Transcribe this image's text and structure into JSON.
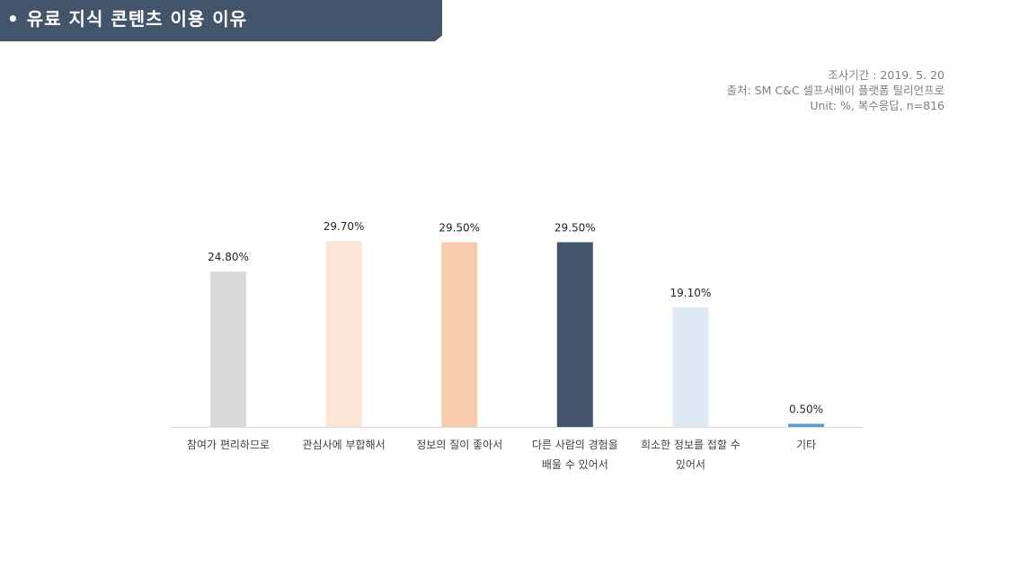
{
  "header": {
    "bullet": "•",
    "title": "유료 지식 콘텐츠 이용 이유"
  },
  "source": {
    "period": "조사기간 : 2019. 5. 20",
    "origin": "출처: SM C&C 셀프서베이 플랫폼 틸리언프로",
    "unit": "Unit: %, 복수응답, n=816"
  },
  "chart_data": {
    "type": "bar",
    "categories": [
      [
        "참여가 편리하므로"
      ],
      [
        "관심사에 부합해서"
      ],
      [
        "정보의 질이 좋아서"
      ],
      [
        "다른 사람의 경험을",
        "배울 수 있어서"
      ],
      [
        "희소한 정보를 접할 수",
        "있어서"
      ],
      [
        "기타"
      ]
    ],
    "values": [
      24.8,
      29.7,
      29.5,
      29.5,
      19.1,
      0.5
    ],
    "data_labels": [
      "24.80%",
      "29.70%",
      "29.50%",
      "29.50%",
      "19.10%",
      "0.50%"
    ],
    "colors": [
      "#d9d9d9",
      "#fbe5d6",
      "#f8cbad",
      "#44546a",
      "#dee9f5",
      "#5b9bd5"
    ],
    "ylim": [
      0,
      30
    ],
    "grid": false,
    "legend": false
  }
}
